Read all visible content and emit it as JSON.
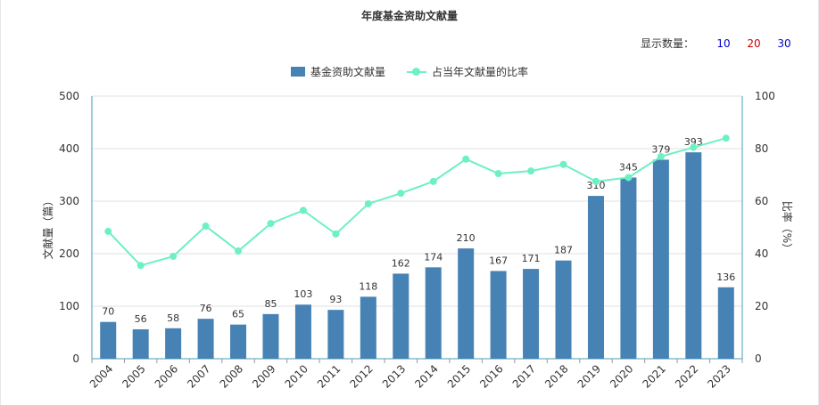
{
  "header": {
    "title": "年度基金资助文献量"
  },
  "count_selector": {
    "label": "显示数量：",
    "options": [
      {
        "label": "10",
        "color": "#0000cc"
      },
      {
        "label": "20",
        "color": "#cc0000"
      },
      {
        "label": "30",
        "color": "#0000cc"
      }
    ]
  },
  "colors": {
    "bar": "#4682b4",
    "line": "#6df0c4",
    "axis": "#4a9bb8",
    "grid": "#e0e0e0"
  },
  "chart_data": {
    "type": "bar",
    "title": "年度基金资助文献量",
    "categories": [
      "2004",
      "2005",
      "2006",
      "2007",
      "2008",
      "2009",
      "2010",
      "2011",
      "2012",
      "2013",
      "2014",
      "2015",
      "2016",
      "2017",
      "2018",
      "2019",
      "2020",
      "2021",
      "2022",
      "2023"
    ],
    "series": [
      {
        "name": "基金资助文献量",
        "type": "bar",
        "axis": "left",
        "values": [
          70,
          56,
          58,
          76,
          65,
          85,
          103,
          93,
          118,
          162,
          174,
          210,
          167,
          171,
          187,
          310,
          345,
          379,
          393,
          136
        ]
      },
      {
        "name": "占当年文献量的比率",
        "type": "line",
        "axis": "right",
        "values": [
          48.5,
          35.5,
          39,
          50.5,
          41,
          51.5,
          56.5,
          47.5,
          59,
          63,
          67.5,
          76,
          70.5,
          71.5,
          74,
          67.5,
          69,
          77,
          80.5,
          84
        ]
      }
    ],
    "ylabel_left": "文献量（篇）",
    "ylabel_right": "比率（%）",
    "ylim_left": [
      0,
      500
    ],
    "ylim_right": [
      0,
      100
    ],
    "yticks_left": [
      "0",
      "100",
      "200",
      "300",
      "400",
      "500"
    ],
    "yticks_right": [
      "0",
      "20",
      "40",
      "60",
      "80",
      "100"
    ],
    "grid": true,
    "legend_position": "top-center"
  }
}
